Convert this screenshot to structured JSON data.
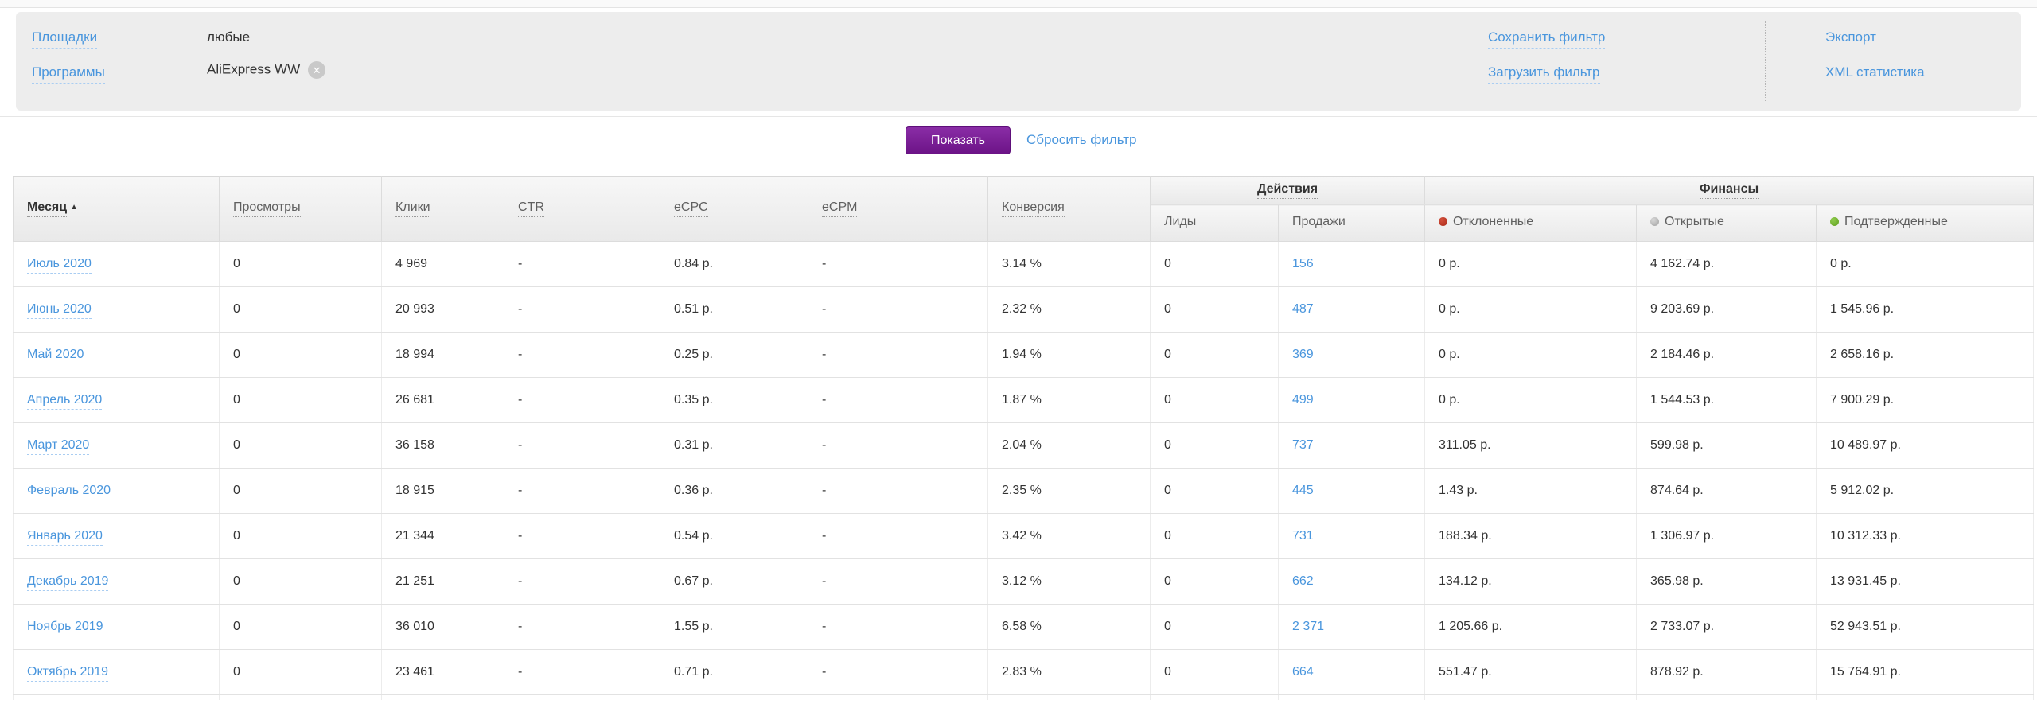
{
  "filters": {
    "rows": [
      {
        "label": "Площадки",
        "value": "любые"
      },
      {
        "label": "Программы",
        "value": "AliExpress WW",
        "removable": true
      }
    ],
    "save_filter": "Сохранить фильтр",
    "load_filter": "Загрузить фильтр",
    "export": "Экспорт",
    "xml_stats": "XML статистика"
  },
  "toolbar": {
    "show_button": "Показать",
    "reset_link": "Сбросить фильтр"
  },
  "icons": {
    "sort_asc": "▲",
    "remove": "✕"
  },
  "colors": {
    "link_blue": "#4a96dd",
    "button_purple": "#7b1f97",
    "declined_red": "#a92817",
    "open_gray": "#9f9f9f",
    "confirmed_green": "#5f9e1d",
    "panel_gray": "#ededed"
  },
  "table": {
    "columns": {
      "month": "Месяц",
      "views": "Просмотры",
      "clicks": "Клики",
      "ctr": "CTR",
      "ecpc": "eCPC",
      "ecpm": "eCPM",
      "conversion": "Конверсия",
      "actions_group": "Действия",
      "leads": "Лиды",
      "sales": "Продажи",
      "finances_group": "Финансы",
      "declined": "Отклоненные",
      "open": "Открытые",
      "confirmed": "Подтвержденные"
    },
    "rows": [
      {
        "month": "Июль 2020",
        "views": "0",
        "clicks": "4 969",
        "ctr": "-",
        "ecpc": "0.84 р.",
        "ecpm": "-",
        "conversion": "3.14 %",
        "leads": "0",
        "sales": "156",
        "declined": "0 р.",
        "open": "4 162.74 р.",
        "confirmed": "0 р."
      },
      {
        "month": "Июнь 2020",
        "views": "0",
        "clicks": "20 993",
        "ctr": "-",
        "ecpc": "0.51 р.",
        "ecpm": "-",
        "conversion": "2.32 %",
        "leads": "0",
        "sales": "487",
        "declined": "0 р.",
        "open": "9 203.69 р.",
        "confirmed": "1 545.96 р."
      },
      {
        "month": "Май 2020",
        "views": "0",
        "clicks": "18 994",
        "ctr": "-",
        "ecpc": "0.25 р.",
        "ecpm": "-",
        "conversion": "1.94 %",
        "leads": "0",
        "sales": "369",
        "declined": "0 р.",
        "open": "2 184.46 р.",
        "confirmed": "2 658.16 р."
      },
      {
        "month": "Апрель 2020",
        "views": "0",
        "clicks": "26 681",
        "ctr": "-",
        "ecpc": "0.35 р.",
        "ecpm": "-",
        "conversion": "1.87 %",
        "leads": "0",
        "sales": "499",
        "declined": "0 р.",
        "open": "1 544.53 р.",
        "confirmed": "7 900.29 р."
      },
      {
        "month": "Март 2020",
        "views": "0",
        "clicks": "36 158",
        "ctr": "-",
        "ecpc": "0.31 р.",
        "ecpm": "-",
        "conversion": "2.04 %",
        "leads": "0",
        "sales": "737",
        "declined": "311.05 р.",
        "open": "599.98 р.",
        "confirmed": "10 489.97 р."
      },
      {
        "month": "Февраль 2020",
        "views": "0",
        "clicks": "18 915",
        "ctr": "-",
        "ecpc": "0.36 р.",
        "ecpm": "-",
        "conversion": "2.35 %",
        "leads": "0",
        "sales": "445",
        "declined": "1.43 р.",
        "open": "874.64 р.",
        "confirmed": "5 912.02 р."
      },
      {
        "month": "Январь 2020",
        "views": "0",
        "clicks": "21 344",
        "ctr": "-",
        "ecpc": "0.54 р.",
        "ecpm": "-",
        "conversion": "3.42 %",
        "leads": "0",
        "sales": "731",
        "declined": "188.34 р.",
        "open": "1 306.97 р.",
        "confirmed": "10 312.33 р."
      },
      {
        "month": "Декабрь 2019",
        "views": "0",
        "clicks": "21 251",
        "ctr": "-",
        "ecpc": "0.67 р.",
        "ecpm": "-",
        "conversion": "3.12 %",
        "leads": "0",
        "sales": "662",
        "declined": "134.12 р.",
        "open": "365.98 р.",
        "confirmed": "13 931.45 р."
      },
      {
        "month": "Ноябрь 2019",
        "views": "0",
        "clicks": "36 010",
        "ctr": "-",
        "ecpc": "1.55 р.",
        "ecpm": "-",
        "conversion": "6.58 %",
        "leads": "0",
        "sales": "2 371",
        "declined": "1 205.66 р.",
        "open": "2 733.07 р.",
        "confirmed": "52 943.51 р."
      },
      {
        "month": "Октябрь 2019",
        "views": "0",
        "clicks": "23 461",
        "ctr": "-",
        "ecpc": "0.71 р.",
        "ecpm": "-",
        "conversion": "2.83 %",
        "leads": "0",
        "sales": "664",
        "declined": "551.47 р.",
        "open": "878.92 р.",
        "confirmed": "15 764.91 р."
      }
    ]
  }
}
